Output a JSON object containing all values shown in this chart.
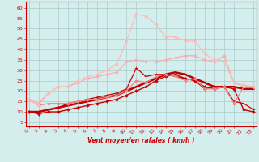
{
  "xlabel": "Vent moyen/en rafales ( km/h )",
  "bg_color": "#d4eeee",
  "grid_color": "#aacccc",
  "x_ticks": [
    0,
    1,
    2,
    3,
    4,
    5,
    6,
    7,
    8,
    9,
    10,
    11,
    12,
    13,
    14,
    15,
    16,
    17,
    18,
    19,
    20,
    21,
    22,
    23
  ],
  "y_ticks": [
    5,
    10,
    15,
    20,
    25,
    30,
    35,
    40,
    45,
    50,
    55,
    60
  ],
  "ylim": [
    3,
    63
  ],
  "xlim": [
    -0.3,
    23.3
  ],
  "series": [
    {
      "x": [
        0,
        1,
        2,
        3,
        4,
        5,
        6,
        7,
        8,
        9,
        10,
        11,
        12,
        13,
        14,
        15,
        16,
        17,
        18,
        19,
        20,
        21,
        22,
        23
      ],
      "y": [
        10,
        9,
        10,
        10,
        11,
        12,
        13,
        14,
        15,
        16,
        18,
        20,
        22,
        25,
        27,
        28,
        26,
        25,
        22,
        21,
        22,
        21,
        11,
        10
      ],
      "color": "#cc0000",
      "lw": 1.0,
      "marker": "D",
      "ms": 1.8
    },
    {
      "x": [
        0,
        1,
        2,
        3,
        4,
        5,
        6,
        7,
        8,
        9,
        10,
        11,
        12,
        13,
        14,
        15,
        16,
        17,
        18,
        19,
        20,
        21,
        22,
        23
      ],
      "y": [
        10,
        10,
        11,
        12,
        13,
        14,
        15,
        16,
        17,
        18,
        20,
        22,
        24,
        26,
        28,
        29,
        28,
        26,
        24,
        22,
        22,
        22,
        21,
        21
      ],
      "color": "#bb0000",
      "lw": 1.8,
      "marker": null,
      "ms": 0
    },
    {
      "x": [
        0,
        1,
        2,
        3,
        4,
        5,
        6,
        7,
        8,
        9,
        10,
        11,
        12,
        13,
        14,
        15,
        16,
        17,
        18,
        19,
        20,
        21,
        22,
        23
      ],
      "y": [
        10,
        10,
        11,
        12,
        14,
        15,
        16,
        17,
        18,
        19,
        21,
        31,
        27,
        28,
        28,
        27,
        26,
        25,
        21,
        22,
        22,
        15,
        14,
        11
      ],
      "color": "#cc0000",
      "lw": 0.9,
      "marker": "+",
      "ms": 3.5
    },
    {
      "x": [
        0,
        1,
        2,
        3,
        4,
        5,
        6,
        7,
        8,
        9,
        10,
        11,
        12,
        13,
        14,
        15,
        16,
        17,
        18,
        19,
        20,
        21,
        22,
        23
      ],
      "y": [
        16,
        13,
        14,
        14,
        14,
        15,
        16,
        16,
        17,
        18,
        20,
        25,
        24,
        27,
        28,
        27,
        25,
        26,
        21,
        21,
        22,
        14,
        22,
        22
      ],
      "color": "#ee8888",
      "lw": 0.9,
      "marker": "D",
      "ms": 1.8
    },
    {
      "x": [
        0,
        1,
        2,
        3,
        4,
        5,
        6,
        7,
        8,
        9,
        10,
        11,
        12,
        13,
        14,
        15,
        16,
        17,
        18,
        19,
        20,
        21,
        22,
        23
      ],
      "y": [
        16,
        14,
        19,
        22,
        22,
        24,
        26,
        27,
        28,
        29,
        34,
        35,
        34,
        34,
        35,
        36,
        37,
        37,
        35,
        34,
        37,
        24,
        22,
        22
      ],
      "color": "#ffaaaa",
      "lw": 0.9,
      "marker": "D",
      "ms": 1.8
    },
    {
      "x": [
        0,
        1,
        2,
        3,
        4,
        5,
        6,
        7,
        8,
        9,
        10,
        11,
        12,
        13,
        14,
        15,
        16,
        17,
        18,
        19,
        20,
        21,
        22,
        23
      ],
      "y": [
        16,
        13,
        19,
        22,
        22,
        25,
        27,
        28,
        30,
        33,
        44,
        57,
        56,
        52,
        46,
        46,
        44,
        44,
        38,
        35,
        34,
        24,
        23,
        22
      ],
      "color": "#ffbbbb",
      "lw": 0.9,
      "marker": "D",
      "ms": 1.8
    }
  ]
}
